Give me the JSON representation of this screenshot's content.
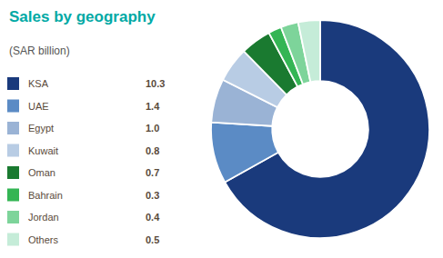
{
  "chart_data": {
    "type": "pie",
    "title": "Sales by geography",
    "subtitle": "(SAR billion)",
    "categories": [
      "KSA",
      "UAE",
      "Egypt",
      "Kuwait",
      "Oman",
      "Bahrain",
      "Jordan",
      "Others"
    ],
    "values": [
      10.3,
      1.4,
      1.0,
      0.8,
      0.7,
      0.3,
      0.4,
      0.5
    ],
    "value_labels": [
      "10.3",
      "1.4",
      "1.0",
      "0.8",
      "0.7",
      "0.3",
      "0.4",
      "0.5"
    ],
    "colors": [
      "#1a3a7c",
      "#5b8bc5",
      "#9ab3d5",
      "#b8cce4",
      "#1a7a30",
      "#34b554",
      "#7dd49a",
      "#c5ecd8"
    ],
    "legend": "left"
  }
}
